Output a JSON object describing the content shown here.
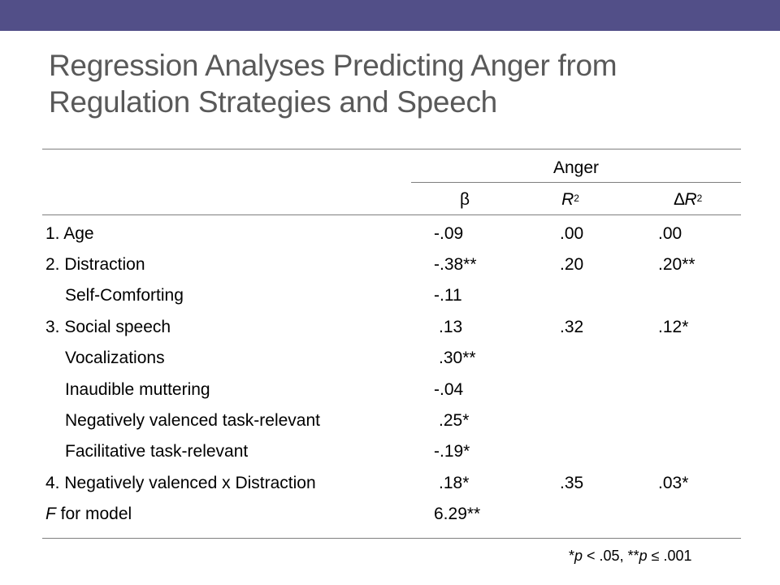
{
  "slide": {
    "title_line1": "Regression Analyses Predicting Anger from",
    "title_line2": "Regulation Strategies and Speech",
    "accent_color": "#524f88"
  },
  "table": {
    "group_header": "Anger",
    "col_beta": "β",
    "col_r": "R",
    "col_r_sup": "2",
    "col_dr_delta": "∆",
    "col_dr": "R",
    "col_dr_sup": "2",
    "rows": [
      {
        "label": "1. Age",
        "beta": "-.09",
        "r2": ".00",
        "dr2": ".00"
      },
      {
        "label": "2. Distraction",
        "beta": "-.38**",
        "r2": ".20",
        "dr2": ".20**"
      },
      {
        "label": "Self-Comforting",
        "beta": "-.11",
        "r2": "",
        "dr2": ""
      },
      {
        "label": "3. Social speech",
        "beta": ".13",
        "r2": ".32",
        "dr2": ".12*"
      },
      {
        "label": "Vocalizations",
        "beta": ".30**",
        "r2": "",
        "dr2": ""
      },
      {
        "label": "Inaudible muttering",
        "beta": "-.04",
        "r2": "",
        "dr2": ""
      },
      {
        "label": "Negatively valenced task-relevant",
        "beta": ".25*",
        "r2": "",
        "dr2": ""
      },
      {
        "label": "Facilitative task-relevant",
        "beta": "-.19*",
        "r2": "",
        "dr2": ""
      },
      {
        "label": "4. Negatively valenced x Distraction",
        "beta": ".18*",
        "r2": ".35",
        "dr2": ".03*"
      }
    ],
    "model_row": {
      "label_italic": "F",
      "label_rest": " for model",
      "beta": "6.29**"
    }
  },
  "footnote": {
    "part1": "*",
    "p1": "p",
    "part2": " < .05, **",
    "p2": "p",
    "part3": " ≤ .001"
  }
}
